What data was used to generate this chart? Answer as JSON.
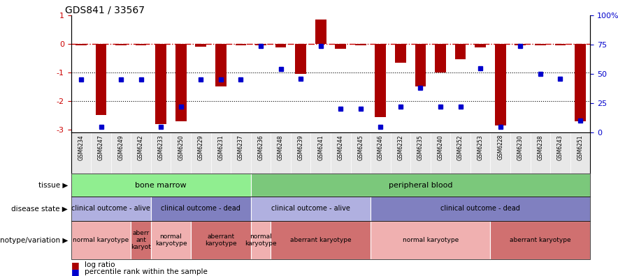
{
  "title": "GDS841 / 33567",
  "samples": [
    "GSM6234",
    "GSM6247",
    "GSM6249",
    "GSM6242",
    "GSM6233",
    "GSM6250",
    "GSM6229",
    "GSM6231",
    "GSM6237",
    "GSM6236",
    "GSM6248",
    "GSM6239",
    "GSM6241",
    "GSM6244",
    "GSM6245",
    "GSM6246",
    "GSM6232",
    "GSM6235",
    "GSM6240",
    "GSM6252",
    "GSM6253",
    "GSM6228",
    "GSM6230",
    "GSM6238",
    "GSM6243",
    "GSM6251"
  ],
  "log_ratio": [
    -0.05,
    -2.5,
    -0.05,
    -0.05,
    -2.8,
    -2.7,
    -0.1,
    -1.5,
    -0.05,
    -0.05,
    -0.12,
    -1.05,
    0.85,
    -0.18,
    -0.05,
    -2.55,
    -0.65,
    -1.5,
    -1.0,
    -0.55,
    -0.12,
    -2.85,
    -0.05,
    -0.05,
    -0.05,
    -2.7
  ],
  "percentile": [
    45,
    5,
    45,
    45,
    5,
    22,
    45,
    45,
    45,
    74,
    54,
    46,
    74,
    20,
    20,
    5,
    22,
    38,
    22,
    22,
    55,
    5,
    74,
    50,
    46,
    10
  ],
  "tissue_groups": [
    {
      "label": "bone marrow",
      "start": 0,
      "end": 8,
      "color": "#90EE90"
    },
    {
      "label": "peripheral blood",
      "start": 9,
      "end": 25,
      "color": "#7BC87B"
    }
  ],
  "disease_groups": [
    {
      "label": "clinical outcome - alive",
      "start": 0,
      "end": 3,
      "color": "#b0b0e0"
    },
    {
      "label": "clinical outcome - dead",
      "start": 4,
      "end": 8,
      "color": "#8080c0"
    },
    {
      "label": "clinical outcome - alive",
      "start": 9,
      "end": 14,
      "color": "#b0b0e0"
    },
    {
      "label": "clinical outcome - dead",
      "start": 15,
      "end": 25,
      "color": "#8080c0"
    }
  ],
  "geno_groups": [
    {
      "label": "normal karyotype",
      "start": 0,
      "end": 2,
      "color": "#f0b0b0"
    },
    {
      "label": "aberr\nant\nkaryot",
      "start": 3,
      "end": 3,
      "color": "#d07070"
    },
    {
      "label": "normal\nkaryotype",
      "start": 4,
      "end": 5,
      "color": "#f0b0b0"
    },
    {
      "label": "aberrant\nkaryotype",
      "start": 6,
      "end": 8,
      "color": "#d07070"
    },
    {
      "label": "normal\nkaryotype",
      "start": 9,
      "end": 9,
      "color": "#f0b0b0"
    },
    {
      "label": "aberrant karyotype",
      "start": 10,
      "end": 14,
      "color": "#d07070"
    },
    {
      "label": "normal karyotype",
      "start": 15,
      "end": 20,
      "color": "#f0b0b0"
    },
    {
      "label": "aberrant karyotype",
      "start": 21,
      "end": 25,
      "color": "#d07070"
    }
  ],
  "bar_color": "#AA0000",
  "dot_color": "#0000CC",
  "dashed_line_color": "#CC0000",
  "ylim_left": [
    -3.1,
    1.0
  ],
  "ylim_right": [
    0,
    100
  ],
  "yticks_left": [
    1,
    0,
    -1,
    -2,
    -3
  ],
  "yticks_right": [
    0,
    25,
    50,
    75,
    100
  ],
  "ytick_labels_right": [
    "0",
    "25",
    "50",
    "75",
    "100%"
  ],
  "ytick_color_left": "#CC0000",
  "legend_items": [
    {
      "label": "log ratio",
      "color": "#AA0000"
    },
    {
      "label": "percentile rank within the sample",
      "color": "#0000CC"
    }
  ]
}
